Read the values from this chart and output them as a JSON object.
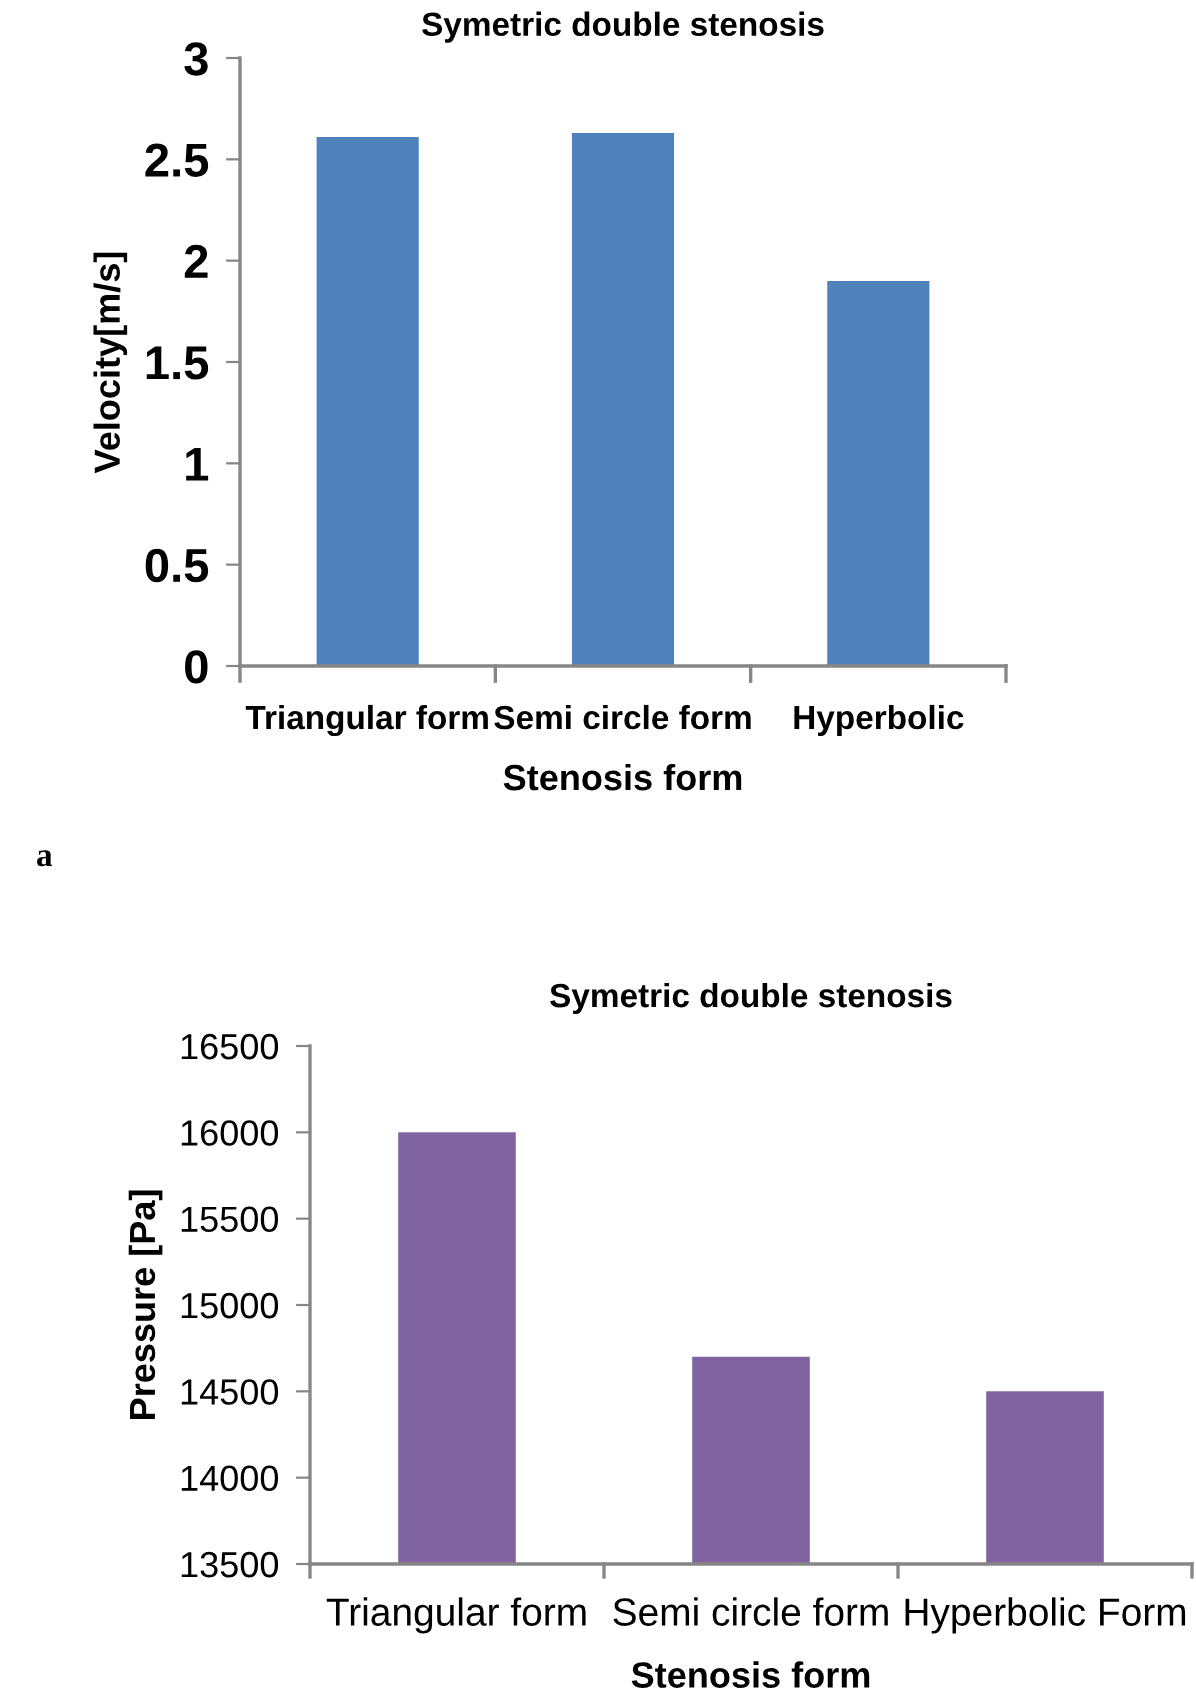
{
  "chart_data": [
    {
      "type": "bar",
      "title": "Symetric double stenosis",
      "xlabel": "Stenosis form",
      "ylabel": "Velocity[m/s]",
      "categories": [
        "Triangular form",
        "Semi circle form",
        "Hyperbolic"
      ],
      "values": [
        2.61,
        2.63,
        1.9
      ],
      "color": "#4f81bd",
      "ylim": [
        0,
        3
      ],
      "yticks": [
        0,
        0.5,
        1,
        1.5,
        2,
        2.5,
        3
      ],
      "grid": false,
      "annotations": [
        "a"
      ]
    },
    {
      "type": "bar",
      "title": "Symetric double stenosis",
      "xlabel": "Stenosis form",
      "ylabel": "Pressure [Pa]",
      "categories": [
        "Triangular form",
        "Semi circle form",
        "Hyperbolic Form"
      ],
      "values": [
        16000,
        14700,
        14500
      ],
      "color": "#8064a2",
      "ylim": [
        13500,
        16500
      ],
      "yticks": [
        13500,
        14000,
        14500,
        15000,
        15500,
        16000,
        16500
      ],
      "grid": false
    }
  ]
}
